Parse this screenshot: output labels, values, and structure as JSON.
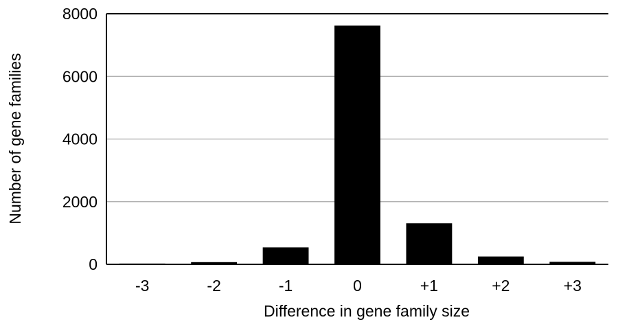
{
  "chart_data": {
    "type": "bar",
    "categories": [
      "-3",
      "-2",
      "-1",
      "0",
      "+1",
      "+2",
      "+3"
    ],
    "values": [
      25,
      70,
      540,
      7620,
      1310,
      250,
      80
    ],
    "title": "",
    "xlabel": "Difference in gene family size",
    "ylabel": "Number of gene families",
    "ylim": [
      0,
      8000
    ],
    "yticks": [
      "0",
      "2000",
      "4000",
      "6000",
      "8000"
    ],
    "grid": true,
    "bar_color": "#000000",
    "gridline_color": "#a6a6a6"
  }
}
